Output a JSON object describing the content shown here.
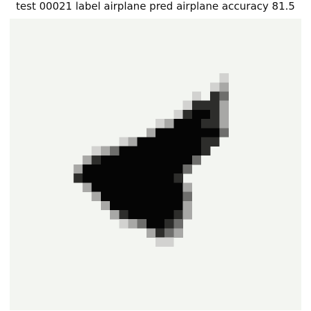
{
  "title": "test 00021  label airplane  pred airplane  accuracy 81.5",
  "image": {
    "subject": "airplane",
    "background_color": "#f3f5f1",
    "foreground_color": "#000000"
  }
}
